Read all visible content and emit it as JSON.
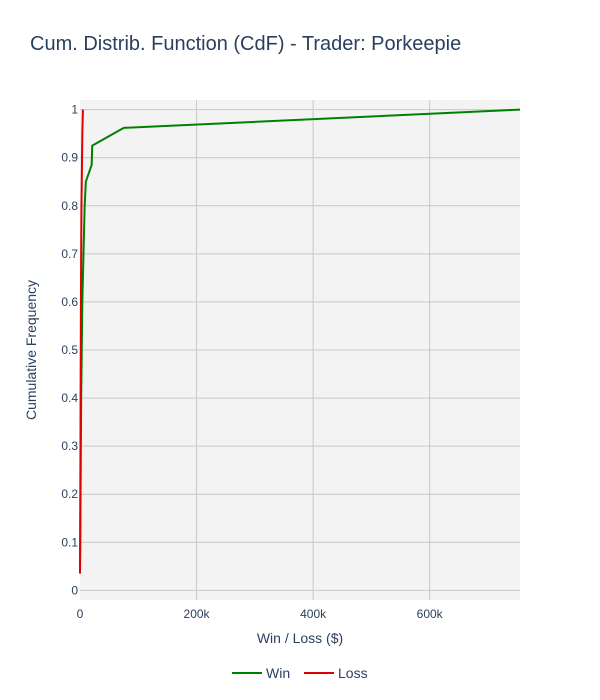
{
  "chart_data": {
    "type": "line",
    "title": "Cum. Distrib. Function (CdF) - Trader: Porkeepie",
    "xlabel": "Win / Loss ($)",
    "ylabel": "Cumulative Frequency",
    "xlim": [
      0,
      755000
    ],
    "ylim": [
      -0.02,
      1.02
    ],
    "xticks": [
      0,
      200000,
      400000,
      600000
    ],
    "xtick_labels": [
      "0",
      "200k",
      "400k",
      "600k"
    ],
    "yticks": [
      0,
      0.1,
      0.2,
      0.3,
      0.4,
      0.5,
      0.6,
      0.7,
      0.8,
      0.9,
      1
    ],
    "ytick_labels": [
      "0",
      "0.1",
      "0.2",
      "0.3",
      "0.4",
      "0.5",
      "0.6",
      "0.7",
      "0.8",
      "0.9",
      "1"
    ],
    "grid": true,
    "legend_position": "bottom",
    "plot_bgcolor": "#f3f3f3",
    "series": [
      {
        "name": "Win",
        "color": "#008000",
        "x": [
          0,
          500,
          1000,
          1500,
          2000,
          2500,
          3000,
          3500,
          4000,
          5000,
          6000,
          7000,
          8000,
          10000,
          20000,
          21000,
          75000,
          755000
        ],
        "y": [
          0.04,
          0.1,
          0.2,
          0.3,
          0.4,
          0.45,
          0.5,
          0.55,
          0.6,
          0.65,
          0.7,
          0.75,
          0.8,
          0.85,
          0.885,
          0.925,
          0.962,
          1.0
        ]
      },
      {
        "name": "Loss",
        "color": "#e00000",
        "x": [
          0,
          200,
          500,
          800,
          1000,
          1300,
          1600,
          2000,
          2500,
          3000,
          3500,
          4000,
          5000
        ],
        "y": [
          0.035,
          0.1,
          0.2,
          0.3,
          0.4,
          0.5,
          0.6,
          0.7,
          0.8,
          0.85,
          0.9,
          0.95,
          1.0
        ]
      }
    ]
  }
}
